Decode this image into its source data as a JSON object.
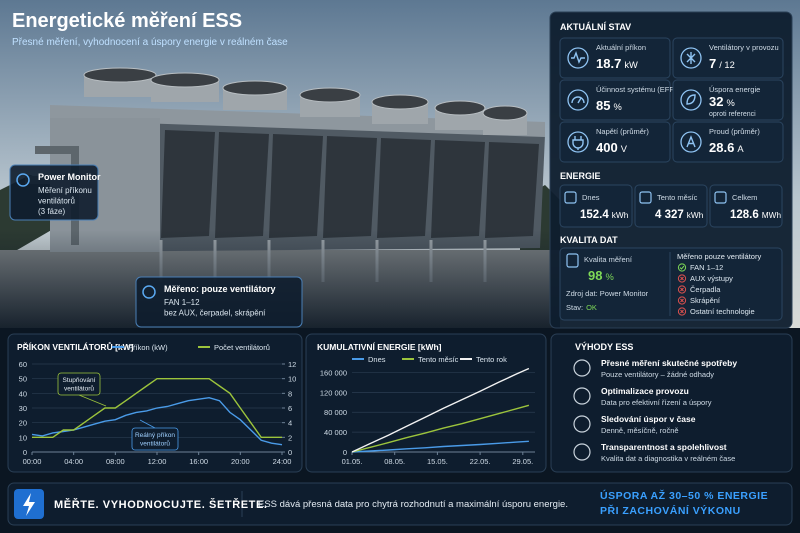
{
  "header": {
    "title": "Energetické měření ESS",
    "subtitle": "Přesné měření, vyhodnocení a úspory energie v reálném čase"
  },
  "callouts": [
    {
      "title": "Power Monitor",
      "lines": [
        "Měření příkonu",
        "ventilátorů",
        "(3 fáze)"
      ]
    },
    {
      "title": "Měřeno: pouze ventilátory",
      "lines": [
        "FAN 1–12",
        "bez AUX, čerpadel, skrápění"
      ]
    }
  ],
  "status": {
    "title": "AKTUÁLNÍ STAV",
    "cards": [
      {
        "label": "Aktuální příkon",
        "value": "18.7",
        "unit": "kW"
      },
      {
        "label": "Ventilátory v provozu",
        "value": "7",
        "unit": "/ 12"
      },
      {
        "label": "Účinnost systému (EFF)",
        "value": "85",
        "unit": "%"
      },
      {
        "label": "Úspora energie",
        "value": "32",
        "unit": "%",
        "note": "oproti referenci"
      },
      {
        "label": "Napětí (průměr)",
        "value": "400",
        "unit": "V"
      },
      {
        "label": "Proud (průměr)",
        "value": "28.6",
        "unit": "A"
      }
    ]
  },
  "energy": {
    "title": "ENERGIE",
    "cards": [
      {
        "label": "Dnes",
        "value": "152.4",
        "unit": "kWh"
      },
      {
        "label": "Tento měsíc",
        "value": "4 327",
        "unit": "kWh"
      },
      {
        "label": "Celkem",
        "value": "128.6",
        "unit": "MWh"
      }
    ]
  },
  "quality": {
    "title": "KVALITA DAT",
    "label": "Kvalita měření",
    "value": "98",
    "unit": "%",
    "source": "Zdroj dat: Power Monitor",
    "status_label": "Stav:",
    "status": "OK",
    "scope_title": "Měřeno pouze ventilátory",
    "scope": [
      {
        "text": "FAN 1–12",
        "included": true
      },
      {
        "text": "AUX výstupy",
        "included": false
      },
      {
        "text": "Čerpadla",
        "included": false
      },
      {
        "text": "Skrápění",
        "included": false
      },
      {
        "text": "Ostatní technologie",
        "included": false
      }
    ]
  },
  "benefits": {
    "title": "VÝHODY ESS",
    "items": [
      {
        "title": "Přesné měření skutečné spotřeby",
        "text": "Pouze ventilátory – žádné odhady"
      },
      {
        "title": "Optimalizace provozu",
        "text": "Data pro efektivní řízení a úspory"
      },
      {
        "title": "Sledování úspor v čase",
        "text": "Denně, měsíčně, ročně"
      },
      {
        "title": "Transparentnost a spolehlivost",
        "text": "Kvalita dat a diagnostika v reálném čase"
      }
    ]
  },
  "footer": {
    "slogan": "MĚŘTE. VYHODNOCUJTE. ŠETŘETE.",
    "text": "ESS dává přesná data pro chytrá rozhodnutí a maximální úsporu energie.",
    "highlight": [
      "ÚSPORA AŽ 30–50 % ENERGIE",
      "PŘI ZACHOVÁNÍ VÝKONU"
    ]
  },
  "chart_data": [
    {
      "type": "line",
      "title": "PŘÍKON VENTILÁTORŮ [kW]",
      "x": [
        0,
        1,
        2,
        3,
        4,
        5,
        6,
        7,
        8,
        9,
        10,
        11,
        12,
        13,
        14,
        15,
        16,
        17,
        18,
        19,
        20,
        21,
        22,
        23,
        24
      ],
      "xlim": [
        0,
        24
      ],
      "xticks": [
        {
          "value": 0,
          "label": "00:00"
        },
        {
          "value": 4,
          "label": "04:00"
        },
        {
          "value": 8,
          "label": "08:00"
        },
        {
          "value": 12,
          "label": "12:00"
        },
        {
          "value": 16,
          "label": "16:00"
        },
        {
          "value": 20,
          "label": "20:00"
        },
        {
          "value": 24,
          "label": "24:00"
        }
      ],
      "ylim": [
        0,
        60
      ],
      "yticks": [
        0,
        10,
        20,
        30,
        40,
        50,
        60
      ],
      "y2lim": [
        0,
        12
      ],
      "y2ticks": [
        0,
        2,
        4,
        6,
        8,
        10,
        12
      ],
      "grid": true,
      "series": [
        {
          "name": "Příkon (kW)",
          "color": "#4a9be8",
          "values": [
            12,
            11,
            13,
            14,
            15,
            17,
            19,
            21,
            22,
            25,
            27,
            28,
            30,
            31,
            33,
            35,
            36,
            37,
            35,
            27,
            22,
            15,
            8,
            6,
            5
          ]
        },
        {
          "name": "Počet ventilátorů",
          "color": "#9cc43c",
          "axis": "y2",
          "values": [
            2,
            2,
            2,
            3,
            3,
            4,
            5,
            6,
            6,
            7,
            8,
            9,
            10,
            10,
            10,
            10,
            10,
            10,
            9,
            8,
            6,
            4,
            2,
            2,
            2
          ]
        }
      ],
      "annotations": [
        {
          "lines": [
            "Stupňování",
            "ventilátorů"
          ]
        },
        {
          "lines": [
            "Reálný příkon",
            "ventilátorů"
          ]
        }
      ]
    },
    {
      "type": "line",
      "title": "KUMULATIVNÍ ENERGIE [kWh]",
      "x": [
        1,
        4,
        7,
        10,
        13,
        16,
        19,
        22,
        25,
        28,
        30
      ],
      "xlim": [
        1,
        31
      ],
      "xticks": [
        {
          "value": 1,
          "label": "01.05."
        },
        {
          "value": 8,
          "label": "08.05."
        },
        {
          "value": 15,
          "label": "15.05."
        },
        {
          "value": 22,
          "label": "22.05."
        },
        {
          "value": 29,
          "label": "29.05."
        }
      ],
      "ylim": [
        0,
        175000
      ],
      "yticks": [
        0,
        {
          "value": 40000,
          "label": "40 000"
        },
        {
          "value": 80000,
          "label": "80 000"
        },
        {
          "value": 120000,
          "label": "120 000"
        },
        {
          "value": 160000,
          "label": "160 000"
        }
      ],
      "grid": true,
      "series": [
        {
          "name": "Dnes",
          "color": "#4a9be8",
          "values": [
            0,
            2000,
            4000,
            6500,
            8500,
            11000,
            13000,
            15000,
            17500,
            20000,
            21500
          ]
        },
        {
          "name": "Tento měsíc",
          "color": "#9cc43c",
          "values": [
            0,
            9500,
            19000,
            29000,
            38000,
            48000,
            57000,
            67000,
            77000,
            87000,
            94000
          ]
        },
        {
          "name": "Tento rok",
          "color": "#f2f2f2",
          "values": [
            0,
            17000,
            34000,
            52000,
            70000,
            88000,
            105000,
            122000,
            140000,
            157000,
            168000
          ]
        }
      ]
    }
  ]
}
